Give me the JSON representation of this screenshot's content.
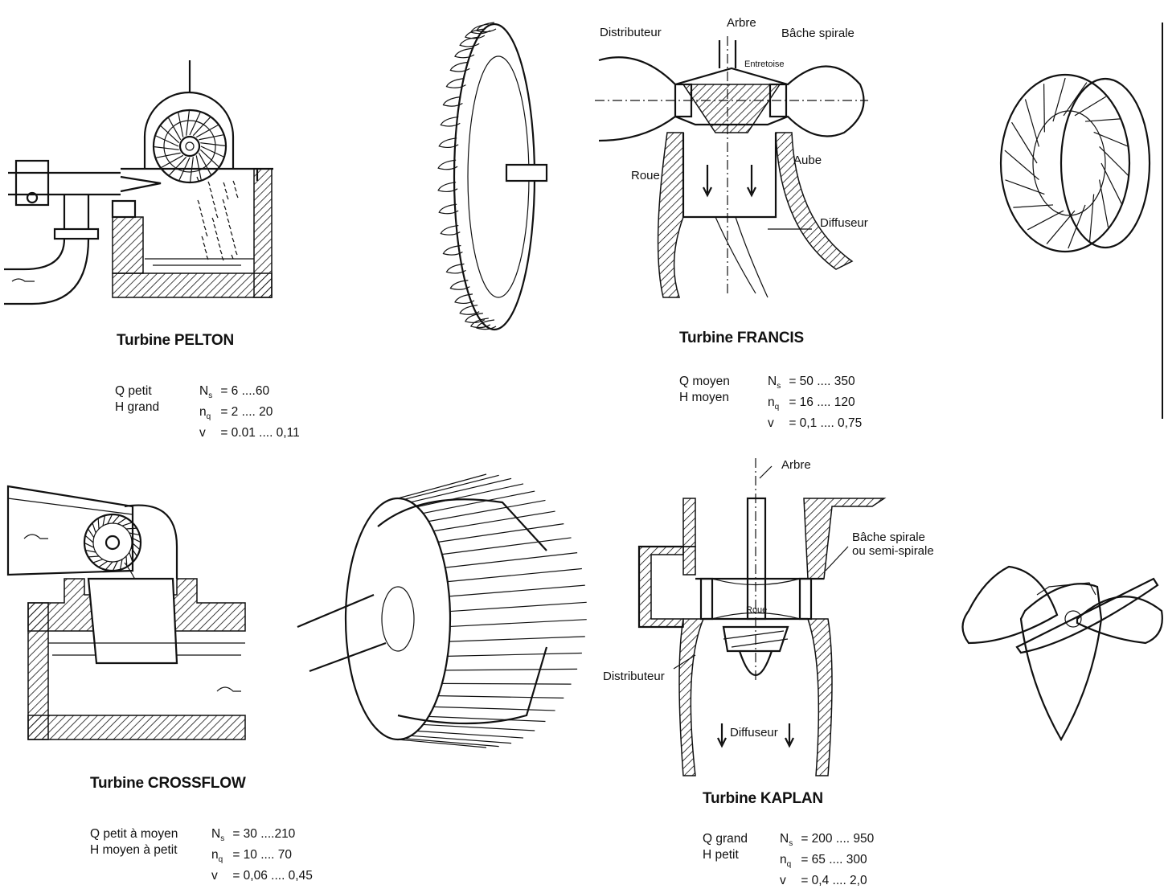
{
  "pelton": {
    "title": "Turbine PELTON",
    "conditions": [
      "Q petit",
      "H grand"
    ],
    "params": [
      {
        "sym": "N",
        "sub": "s",
        "val": "= 6 ....60"
      },
      {
        "sym": "n",
        "sub": "q",
        "val": "= 2 .... 20"
      },
      {
        "sym": "v",
        "sub": "",
        "val": "= 0.01 .... 0,11"
      }
    ]
  },
  "francis": {
    "title": "Turbine FRANCIS",
    "conditions": [
      "Q moyen",
      "H moyen"
    ],
    "params": [
      {
        "sym": "N",
        "sub": "s",
        "val": "= 50 .... 350"
      },
      {
        "sym": "n",
        "sub": "q",
        "val": "= 16 .... 120"
      },
      {
        "sym": "v",
        "sub": "",
        "val": "= 0,1 .... 0,75"
      }
    ],
    "labels": {
      "distributeur": "Distributeur",
      "arbre": "Arbre",
      "bache": "Bâche spirale",
      "entretoise": "Entretoise",
      "roue": "Roue",
      "aube": "Aube",
      "diffuseur": "Diffuseur"
    }
  },
  "crossflow": {
    "title": "Turbine CROSSFLOW",
    "conditions": [
      "Q petit à moyen",
      "H moyen à petit"
    ],
    "params": [
      {
        "sym": "N",
        "sub": "s",
        "val": "= 30 ....210"
      },
      {
        "sym": "n",
        "sub": "q",
        "val": "= 10 .... 70"
      },
      {
        "sym": "v",
        "sub": "",
        "val": "= 0,06 .... 0,45"
      }
    ]
  },
  "kaplan": {
    "title": "Turbine KAPLAN",
    "conditions": [
      "Q grand",
      "H petit"
    ],
    "params": [
      {
        "sym": "N",
        "sub": "s",
        "val": "= 200 .... 950"
      },
      {
        "sym": "n",
        "sub": "q",
        "val": "= 65 .... 300"
      },
      {
        "sym": "v",
        "sub": "",
        "val": "= 0,4 .... 2,0"
      }
    ],
    "labels": {
      "arbre": "Arbre",
      "bache_line1": "Bâche spirale",
      "bache_line2": "ou semi-spirale",
      "roue": "Roue",
      "distributeur": "Distributeur",
      "diffuseur": "Diffuseur"
    }
  }
}
